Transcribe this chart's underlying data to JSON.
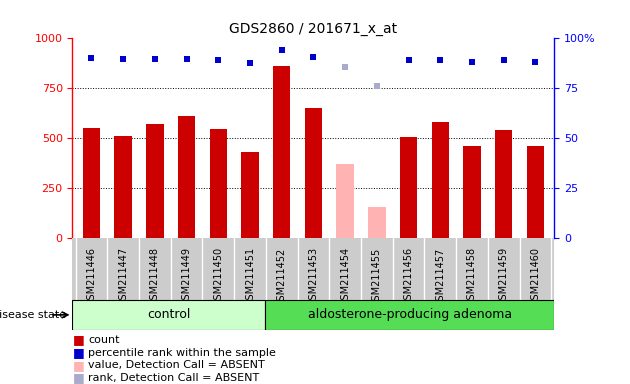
{
  "title": "GDS2860 / 201671_x_at",
  "samples": [
    "GSM211446",
    "GSM211447",
    "GSM211448",
    "GSM211449",
    "GSM211450",
    "GSM211451",
    "GSM211452",
    "GSM211453",
    "GSM211454",
    "GSM211455",
    "GSM211456",
    "GSM211457",
    "GSM211458",
    "GSM211459",
    "GSM211460"
  ],
  "bar_values": [
    550,
    510,
    570,
    610,
    545,
    430,
    860,
    650,
    null,
    null,
    505,
    580,
    460,
    540,
    460
  ],
  "bar_absent_values": [
    null,
    null,
    null,
    null,
    null,
    null,
    null,
    null,
    370,
    155,
    null,
    null,
    null,
    null,
    null
  ],
  "blue_dots_pct": [
    90,
    89.5,
    89.5,
    89.5,
    89,
    87.5,
    94,
    90.5,
    null,
    null,
    89,
    89,
    88,
    89,
    88
  ],
  "blue_absent_dots_pct": [
    null,
    null,
    null,
    null,
    null,
    null,
    null,
    null,
    85.5,
    76,
    null,
    null,
    null,
    null,
    null
  ],
  "control_count": 6,
  "adenoma_count": 9,
  "bar_color": "#cc0000",
  "bar_absent_color": "#ffb3b3",
  "dot_color": "#0000cc",
  "dot_absent_color": "#aaaacc",
  "control_bg": "#ccffcc",
  "adenoma_bg": "#55dd55",
  "plot_bg": "#ffffff",
  "tick_area_bg": "#cccccc",
  "legend_items": [
    "count",
    "percentile rank within the sample",
    "value, Detection Call = ABSENT",
    "rank, Detection Call = ABSENT"
  ],
  "legend_colors": [
    "#cc0000",
    "#0000cc",
    "#ffb3b3",
    "#aaaacc"
  ]
}
